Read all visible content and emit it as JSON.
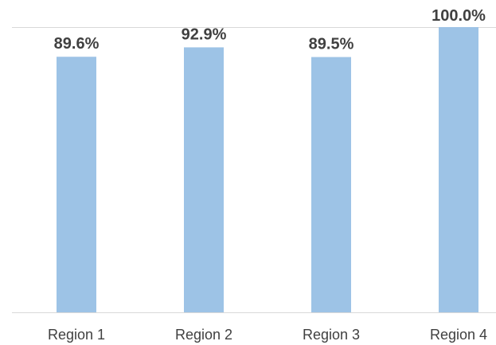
{
  "chart_data": {
    "type": "bar",
    "title": "",
    "xlabel": "",
    "ylabel": "",
    "categories": [
      "Region 1",
      "Region 2",
      "Region 3",
      "Region 4"
    ],
    "values": [
      89.6,
      92.9,
      89.5,
      100.0
    ],
    "data_labels": [
      "89.6%",
      "92.9%",
      "89.5%",
      "100.0%"
    ],
    "ylim": [
      0,
      100
    ],
    "grid": true,
    "legend": "none",
    "colors": {
      "bar": "#9DC3E6",
      "gridline": "#D9D9D9",
      "axis": "#D9D9D9",
      "text": "#404040"
    }
  }
}
